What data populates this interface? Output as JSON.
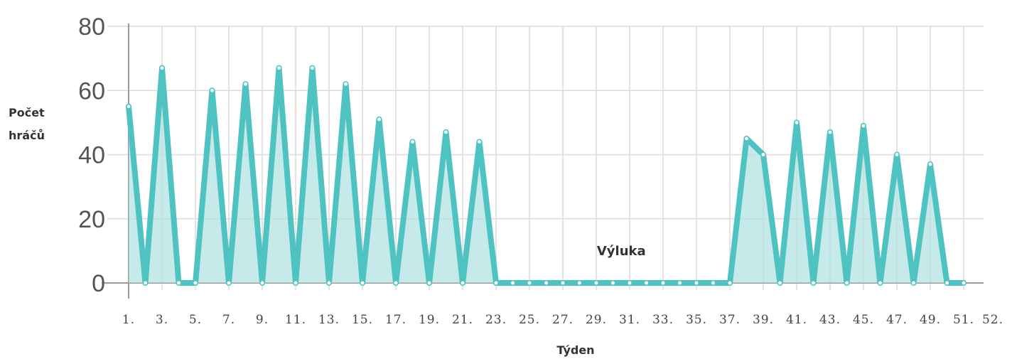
{
  "chart_data": {
    "type": "area",
    "title": "",
    "ylabel_lines": [
      "Počet",
      "hráčů"
    ],
    "xlabel": "Týden",
    "ylim": [
      0,
      80
    ],
    "yticks": [
      0,
      20,
      40,
      60,
      80
    ],
    "grid": true,
    "x": [
      1,
      2,
      3,
      4,
      5,
      6,
      7,
      8,
      9,
      10,
      11,
      12,
      13,
      14,
      15,
      16,
      17,
      18,
      19,
      20,
      21,
      22,
      23,
      24,
      25,
      26,
      27,
      28,
      29,
      30,
      31,
      32,
      33,
      34,
      35,
      36,
      37,
      38,
      39,
      40,
      41,
      42,
      43,
      44,
      45,
      46,
      47,
      48,
      49,
      50,
      51,
      52
    ],
    "xtick_labels": [
      "1.",
      "3.",
      "5.",
      "7.",
      "9.",
      "11.",
      "13.",
      "15.",
      "17.",
      "19.",
      "21.",
      "23.",
      "25.",
      "27.",
      "29.",
      "31.",
      "33.",
      "35.",
      "37.",
      "39.",
      "41.",
      "43.",
      "45.",
      "47.",
      "49.",
      "51.",
      "52."
    ],
    "series": [
      {
        "values": [
          55,
          0,
          67,
          0,
          0,
          60,
          0,
          62,
          0,
          67,
          0,
          67,
          0,
          62,
          0,
          51,
          0,
          44,
          0,
          47,
          0,
          44,
          0,
          0,
          0,
          0,
          0,
          0,
          0,
          0,
          0,
          0,
          0,
          0,
          0,
          0,
          0,
          45,
          40,
          0,
          50,
          0,
          47,
          0,
          49,
          0,
          40,
          0,
          37,
          0,
          0,
          null
        ]
      }
    ],
    "annotations": [
      {
        "text": "Výluka",
        "x": 30.5,
        "y": 10
      }
    ],
    "colors": {
      "line": "#4ec3c1",
      "fill": "#b3e3e1",
      "grid": "#dcdcdc",
      "axis": "#999999",
      "marker_fill": "#ffffff"
    }
  }
}
